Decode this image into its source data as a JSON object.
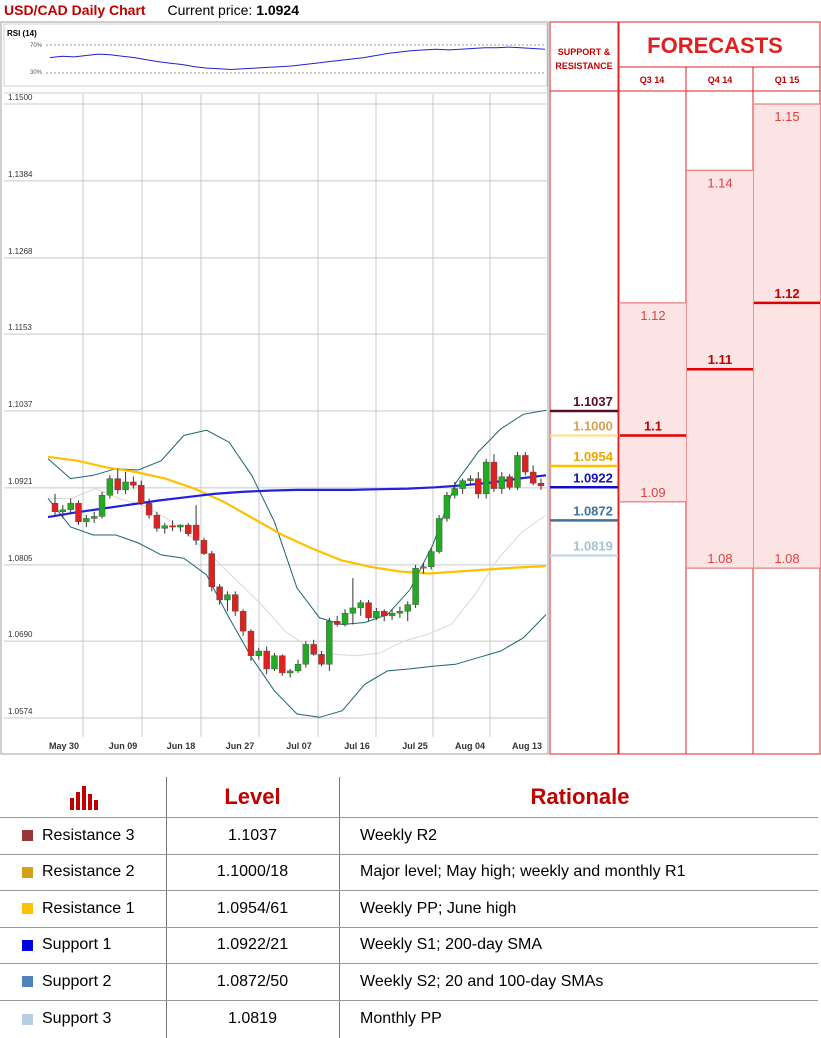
{
  "header": {
    "title": "USD/CAD Daily Chart",
    "price_label": "Current price:",
    "price_value": "1.0924"
  },
  "rsi": {
    "label": "RSI (14)",
    "upper": "70%",
    "lower": "30%",
    "values": [
      52,
      54,
      53,
      55,
      57,
      56,
      54,
      52,
      49,
      46,
      44,
      42,
      39,
      37,
      36,
      35,
      36,
      37,
      38,
      39,
      40,
      42,
      44,
      46,
      48,
      50,
      52,
      55,
      58,
      60,
      62,
      63,
      64,
      63,
      64,
      65,
      66,
      66,
      67,
      66,
      65,
      64
    ]
  },
  "sr_header": "SUPPORT & RESISTANCE",
  "forecasts": {
    "title": "FORECASTS",
    "columns": [
      "Q3 14",
      "Q4 14",
      "Q1 15"
    ]
  },
  "chart_data": {
    "type": "candlestick",
    "title": "USD/CAD Daily Chart",
    "y_ticks": [
      1.15,
      1.1384,
      1.1268,
      1.1153,
      1.1037,
      1.0921,
      1.0805,
      1.069,
      1.0574
    ],
    "y_tick_labels": [
      "1.1500",
      "1.1384",
      "1.1268",
      "1.1153",
      "1.1037",
      "1.0921",
      "1.0805",
      "1.0690",
      "1.0574"
    ],
    "ylim": [
      1.0574,
      1.15
    ],
    "x_labels": [
      "May 30",
      "Jun 09",
      "Jun 18",
      "Jun 27",
      "Jul 07",
      "Jul 16",
      "Jul 25",
      "Aug 04",
      "Aug 13"
    ],
    "grid": true,
    "candles": [
      [
        1.0898,
        1.0912,
        1.088,
        1.0885
      ],
      [
        1.0885,
        1.0895,
        1.0875,
        1.0888
      ],
      [
        1.0888,
        1.0905,
        1.0882,
        1.0898
      ],
      [
        1.0898,
        1.0902,
        1.0865,
        1.087
      ],
      [
        1.087,
        1.088,
        1.0862,
        1.0875
      ],
      [
        1.0875,
        1.0885,
        1.0868,
        1.0878
      ],
      [
        1.0878,
        1.0915,
        1.0875,
        1.091
      ],
      [
        1.091,
        1.094,
        1.0905,
        1.0935
      ],
      [
        1.0935,
        1.095,
        1.0912,
        1.0918
      ],
      [
        1.0918,
        1.0945,
        1.0912,
        1.093
      ],
      [
        1.093,
        1.0938,
        1.092,
        1.0925
      ],
      [
        1.0925,
        1.0932,
        1.0895,
        1.0898
      ],
      [
        1.0898,
        1.0905,
        1.0875,
        1.088
      ],
      [
        1.088,
        1.0885,
        1.0855,
        1.086
      ],
      [
        1.086,
        1.0868,
        1.0852,
        1.0864
      ],
      [
        1.0864,
        1.0872,
        1.0856,
        1.0862
      ],
      [
        1.0862,
        1.0866,
        1.0855,
        1.0865
      ],
      [
        1.0865,
        1.0868,
        1.0848,
        1.0852
      ],
      [
        1.0865,
        1.0895,
        1.0835,
        1.0842
      ],
      [
        1.0842,
        1.0846,
        1.082,
        1.0822
      ],
      [
        1.0822,
        1.0826,
        1.0765,
        1.0772
      ],
      [
        1.0772,
        1.0776,
        1.0745,
        1.0752
      ],
      [
        1.0752,
        1.0765,
        1.0735,
        1.076
      ],
      [
        1.076,
        1.0765,
        1.0728,
        1.0735
      ],
      [
        1.0735,
        1.0738,
        1.0698,
        1.0705
      ],
      [
        1.0705,
        1.0708,
        1.066,
        1.0668
      ],
      [
        1.0668,
        1.068,
        1.0662,
        1.0675
      ],
      [
        1.0675,
        1.0682,
        1.064,
        1.0648
      ],
      [
        1.0648,
        1.0672,
        1.0645,
        1.0668
      ],
      [
        1.0668,
        1.067,
        1.0638,
        1.0642
      ],
      [
        1.0642,
        1.0648,
        1.0635,
        1.0645
      ],
      [
        1.0645,
        1.0662,
        1.0642,
        1.0655
      ],
      [
        1.0655,
        1.069,
        1.065,
        1.0685
      ],
      [
        1.0685,
        1.0692,
        1.0668,
        1.067
      ],
      [
        1.067,
        1.0675,
        1.0652,
        1.0655
      ],
      [
        1.0655,
        1.0725,
        1.0645,
        1.072
      ],
      [
        1.072,
        1.0728,
        1.0712,
        1.0715
      ],
      [
        1.0715,
        1.0738,
        1.0712,
        1.0732
      ],
      [
        1.0732,
        1.0785,
        1.0715,
        1.074
      ],
      [
        1.074,
        1.0752,
        1.0728,
        1.0748
      ],
      [
        1.0748,
        1.0752,
        1.072,
        1.0725
      ],
      [
        1.0725,
        1.074,
        1.0722,
        1.0735
      ],
      [
        1.0735,
        1.0738,
        1.072,
        1.0728
      ],
      [
        1.0728,
        1.0738,
        1.0722,
        1.0732
      ],
      [
        1.0732,
        1.0742,
        1.0725,
        1.0735
      ],
      [
        1.0735,
        1.075,
        1.072,
        1.0745
      ],
      [
        1.0745,
        1.0805,
        1.074,
        1.08
      ],
      [
        1.08,
        1.0808,
        1.0792,
        1.0802
      ],
      [
        1.0802,
        1.083,
        1.0798,
        1.0825
      ],
      [
        1.0825,
        1.088,
        1.0822,
        1.0875
      ],
      [
        1.0875,
        1.0915,
        1.087,
        1.091
      ],
      [
        1.091,
        1.093,
        1.0905,
        1.092
      ],
      [
        1.092,
        1.0935,
        1.0912,
        1.0932
      ],
      [
        1.0932,
        1.094,
        1.0925,
        1.0935
      ],
      [
        1.0935,
        1.0945,
        1.0905,
        1.0912
      ],
      [
        1.0912,
        1.0965,
        1.0905,
        1.096
      ],
      [
        1.096,
        1.0972,
        1.0915,
        1.092
      ],
      [
        1.092,
        1.0945,
        1.0912,
        1.0938
      ],
      [
        1.0938,
        1.0942,
        1.0918,
        1.0922
      ],
      [
        1.0922,
        1.0975,
        1.0918,
        1.097
      ],
      [
        1.097,
        1.0975,
        1.094,
        1.0945
      ],
      [
        1.0945,
        1.0955,
        1.0925,
        1.0928
      ],
      [
        1.0928,
        1.0935,
        1.0918,
        1.0924
      ]
    ],
    "sma_200": [
      1.0877,
      1.0884,
      1.089,
      1.0896,
      1.0902,
      1.0907,
      1.0912,
      1.0915,
      1.0917,
      1.0918,
      1.0918,
      1.0918,
      1.0919,
      1.092,
      1.0922,
      1.0925,
      1.0929,
      1.0935,
      1.094
    ],
    "sma_100": [
      1.0968,
      1.0962,
      1.0952,
      1.0945,
      1.0935,
      1.092,
      1.09,
      1.0875,
      1.085,
      1.083,
      1.0812,
      1.0802,
      1.0795,
      1.0792,
      1.0795,
      1.0798,
      1.0801,
      1.0803
    ],
    "bb_upper": [
      1.0965,
      1.0935,
      1.094,
      1.095,
      1.0948,
      1.0962,
      1.1,
      1.1008,
      1.099,
      1.094,
      1.087,
      1.077,
      1.0725,
      1.0715,
      1.0718,
      1.073,
      1.0768,
      1.0835,
      1.0928,
      1.0975,
      1.101,
      1.1032,
      1.1038
    ],
    "bb_lower": [
      1.0905,
      1.0862,
      1.085,
      1.085,
      1.0838,
      1.082,
      1.0815,
      1.079,
      1.0725,
      1.0665,
      1.0615,
      1.058,
      1.0575,
      1.0585,
      1.0625,
      1.0645,
      1.0648,
      1.0652,
      1.0655,
      1.0665,
      1.0675,
      1.0695,
      1.073
    ],
    "bb_mid": [
      1.0905,
      1.0905,
      1.092,
      1.0905,
      1.0895,
      1.0875,
      1.0848,
      1.0815,
      1.078,
      1.0745,
      1.0705,
      1.068,
      1.067,
      1.0668,
      1.0672,
      1.069,
      1.07,
      1.0715,
      1.076,
      1.0815,
      1.0855,
      1.088
    ],
    "levels": [
      {
        "label": "1.1037",
        "value": 1.1037,
        "color": "#5a0e2a",
        "text_color": "#5a0e2a",
        "name": "resistance-3"
      },
      {
        "label": "1.1000",
        "value": 1.1,
        "color": "#ffe2a0",
        "text_color": "#d8a14a",
        "name": "resistance-2"
      },
      {
        "label": "1.0954",
        "value": 1.0954,
        "color": "#ffc000",
        "text_color": "#e5a800",
        "name": "resistance-1"
      },
      {
        "label": "1.0922",
        "value": 1.0922,
        "color": "#1010c0",
        "text_color": "#1010c0",
        "name": "support-1"
      },
      {
        "label": "1.0872",
        "value": 1.0872,
        "color": "#41719c",
        "text_color": "#41719c",
        "name": "support-2"
      },
      {
        "label": "1.0819",
        "value": 1.0819,
        "color": "#c9dbe4",
        "text_color": "#a2c4cf",
        "name": "support-3"
      }
    ],
    "forecast_bars": [
      {
        "col": 0,
        "bars": [
          {
            "label": "1.12",
            "value": 1.12,
            "bold": false
          },
          {
            "label": "1.1",
            "value": 1.1,
            "bold": true
          },
          {
            "label": "1.09",
            "value": 1.09,
            "bold": false
          }
        ]
      },
      {
        "col": 1,
        "bars": [
          {
            "label": "1.14",
            "value": 1.14,
            "bold": false
          },
          {
            "label": "1.11",
            "value": 1.11,
            "bold": true
          },
          {
            "label": "1.08",
            "value": 1.08,
            "bold": false
          }
        ]
      },
      {
        "col": 2,
        "bars": [
          {
            "label": "1.15",
            "value": 1.15,
            "bold": false
          },
          {
            "label": "1.12",
            "value": 1.12,
            "bold": true
          },
          {
            "label": "1.08",
            "value": 1.08,
            "bold": false
          }
        ]
      }
    ]
  },
  "table": {
    "headers": {
      "level": "Level",
      "rationale": "Rationale"
    },
    "rows": [
      {
        "name": "Resistance 3",
        "level": "1.1037",
        "rationale": "Weekly R2",
        "color": "#953735"
      },
      {
        "name": "Resistance 2",
        "level": "1.1000/18",
        "rationale": "Major level; May high; weekly and monthly R1",
        "color": "#d4a017"
      },
      {
        "name": "Resistance 1",
        "level": "1.0954/61",
        "rationale": "Weekly PP; June high",
        "color": "#ffc000"
      },
      {
        "name": "Support 1",
        "level": "1.0922/21",
        "rationale": "Weekly S1; 200-day SMA",
        "color": "#0000e0"
      },
      {
        "name": "Support 2",
        "level": "1.0872/50",
        "rationale": "Weekly S2; 20 and 100-day SMAs",
        "color": "#4f81bd"
      },
      {
        "name": "Support 3",
        "level": "1.0819",
        "rationale": "Monthly PP",
        "color": "#b8cce4"
      }
    ]
  }
}
